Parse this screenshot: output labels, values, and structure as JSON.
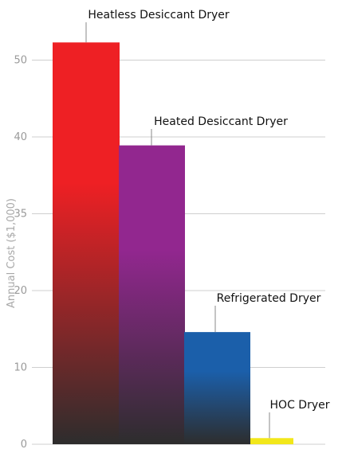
{
  "chart_data": {
    "type": "bar",
    "ylabel": "Annual Cost ($1,000)",
    "ytick_labels": [
      "0",
      "10",
      "20",
      "35",
      "40",
      "50"
    ],
    "categories": [
      "Heatless Desiccant Dryer",
      "Heated Desiccant Dryer",
      "Refrigerated Dryer",
      "HOC Dryer"
    ],
    "values": [
      52.3,
      38.9,
      14.6,
      0.8
    ],
    "ylim": [
      0,
      60
    ],
    "grid": true,
    "colors": [
      "#ee2024",
      "#92278f",
      "#1b5faa",
      "#f2e71a"
    ],
    "bottom_color": "#2d2d2d",
    "grid_color": "#cfcfcf"
  }
}
